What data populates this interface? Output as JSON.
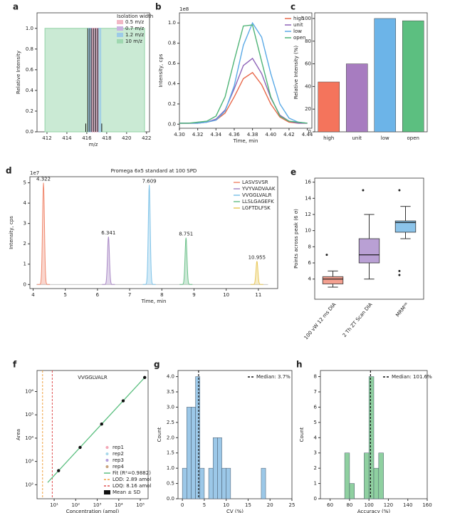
{
  "chart_data": [
    {
      "panel": "a",
      "type": "window",
      "x_label": "m/z",
      "y_label": "Relative Intensity",
      "xlim": [
        411,
        422.3
      ],
      "ylim": [
        0,
        1.15
      ],
      "xticks": [
        412,
        414,
        416,
        418,
        420,
        422
      ],
      "yticks": [
        {
          "value": 0,
          "label": "0.0"
        },
        0.2,
        0.4,
        0.6,
        0.8,
        {
          "value": 1,
          "label": "1.0"
        }
      ],
      "legend_title": "Isolation width",
      "series": [
        {
          "name": "0.5 m/z",
          "color": "#f2b8c6",
          "xrange": [
            416.55,
            417.05
          ],
          "values": [
            1
          ]
        },
        {
          "name": "0.7 m/z",
          "color": "#c9b3e0",
          "xrange": [
            416.45,
            417.15
          ],
          "values": [
            1
          ]
        },
        {
          "name": "1.2 m/z",
          "color": "#9ccbe8",
          "xrange": [
            416.2,
            417.4
          ],
          "values": [
            1
          ]
        },
        {
          "name": "10 m/z",
          "color": "#9fd8b0",
          "xrange": [
            411.8,
            421.8
          ],
          "values": [
            1
          ]
        }
      ],
      "peaks": {
        "x": [
          415.9,
          416.1,
          416.3,
          416.5,
          416.7,
          416.9,
          417.1,
          417.5
        ],
        "values": [
          0.08,
          1,
          1,
          1,
          1,
          1,
          1,
          0.08
        ]
      }
    },
    {
      "panel": "b",
      "type": "line",
      "x_label": "Time, min",
      "y_label": "Intensity, cps",
      "y_offset_label": "1e8",
      "xlim": [
        4.3,
        4.445
      ],
      "ylim": [
        -0.04,
        1.1
      ],
      "xticks": [
        {
          "value": 4.3,
          "label": "4.30"
        },
        4.32,
        4.34,
        4.36,
        4.38,
        {
          "value": 4.4,
          "label": "4.40"
        },
        4.42,
        4.44
      ],
      "yticks": [
        {
          "value": 0,
          "label": "0.0"
        },
        0.2,
        0.4,
        0.6,
        0.8,
        {
          "value": 1,
          "label": "1.0"
        }
      ],
      "x": [
        4.3,
        4.31,
        4.32,
        4.33,
        4.34,
        4.35,
        4.36,
        4.37,
        4.38,
        4.39,
        4.4,
        4.41,
        4.42,
        4.43,
        4.44
      ],
      "series": [
        {
          "name": "high",
          "color": "#e8684a",
          "values": [
            0.01,
            0.01,
            0.01,
            0.02,
            0.04,
            0.11,
            0.27,
            0.45,
            0.51,
            0.39,
            0.2,
            0.07,
            0.02,
            0.01,
            0.01
          ]
        },
        {
          "name": "unit",
          "color": "#8e63b8",
          "values": [
            0.01,
            0.01,
            0.01,
            0.02,
            0.05,
            0.14,
            0.35,
            0.58,
            0.65,
            0.5,
            0.26,
            0.09,
            0.03,
            0.01,
            0.01
          ]
        },
        {
          "name": "low",
          "color": "#5aa9e6",
          "values": [
            0.01,
            0.01,
            0.01,
            0.02,
            0.04,
            0.13,
            0.38,
            0.78,
            1.0,
            0.86,
            0.5,
            0.2,
            0.06,
            0.02,
            0.01
          ]
        },
        {
          "name": "open",
          "color": "#4fb477",
          "values": [
            0.01,
            0.01,
            0.02,
            0.03,
            0.08,
            0.27,
            0.63,
            0.97,
            0.98,
            0.62,
            0.27,
            0.08,
            0.03,
            0.02,
            0.01
          ]
        }
      ]
    },
    {
      "panel": "c",
      "type": "bar",
      "y_label": "Relative Intensity (%)",
      "categories": [
        "high",
        "unit",
        "low",
        "open"
      ],
      "values": [
        44,
        60,
        100,
        98
      ],
      "colors": [
        "#f4745c",
        "#a77cc0",
        "#6cb4e8",
        "#5cbf80"
      ],
      "ylim": [
        0,
        105
      ],
      "yticks": [
        0,
        20,
        40,
        60,
        80,
        100
      ]
    },
    {
      "panel": "d",
      "type": "chromatogram",
      "title": "Promega 6x5 standard at 100 SPD",
      "x_label": "Time, min",
      "y_label": "Intensity, cps",
      "y_offset_label": "1e7",
      "xlim": [
        3.9,
        11.6
      ],
      "ylim": [
        -0.2,
        5.3
      ],
      "xticks": [
        4,
        5,
        6,
        7,
        8,
        9,
        10,
        11
      ],
      "yticks": [
        0,
        1,
        2,
        3,
        4,
        5
      ],
      "series": [
        {
          "name": "LASVSVSR",
          "color": "#f08a70",
          "x": [
            4.322
          ],
          "values": [
            5.0
          ]
        },
        {
          "name": "YVYVADVAAK",
          "color": "#a989c5",
          "x": [
            6.341
          ],
          "values": [
            2.35
          ]
        },
        {
          "name": "VVGGLVALR",
          "color": "#7fc3e8",
          "x": [
            7.609
          ],
          "values": [
            4.9
          ]
        },
        {
          "name": "LLSLGAGEFK",
          "color": "#6cc08a",
          "x": [
            8.751
          ],
          "values": [
            2.3
          ]
        },
        {
          "name": "LGFTDLFSK",
          "color": "#e8c85a",
          "x": [
            10.955
          ],
          "values": [
            1.15
          ]
        }
      ]
    },
    {
      "panel": "e",
      "type": "box",
      "y_label": "Points across peak (6 σ)",
      "categories": [
        "100 vW 12 ms DIA",
        "2 Th ZT Scan DIA",
        "MRMᴴᴿ"
      ],
      "colors": [
        "#f4a090",
        "#b9a0d4",
        "#8cc4ea"
      ],
      "ylim": [
        1.5,
        16.5
      ],
      "yticks": [
        4,
        6,
        8,
        10,
        12,
        14,
        16
      ],
      "boxes": [
        {
          "whislo": 3,
          "q1": 3.4,
          "med": 4,
          "q3": 4.3,
          "whishi": 5,
          "fliers": [
            7
          ]
        },
        {
          "whislo": 4,
          "q1": 6,
          "med": 7,
          "q3": 9,
          "whishi": 12,
          "fliers": [
            15
          ]
        },
        {
          "whislo": 9,
          "q1": 9.8,
          "med": 11,
          "q3": 11.2,
          "whishi": 13,
          "fliers": [
            15,
            5,
            4.5
          ]
        }
      ]
    },
    {
      "panel": "f",
      "type": "scatter",
      "title": "VVGGLVALR",
      "x_label": "Concentration (amol)",
      "y_label": "Area",
      "xlog": true,
      "ylog": true,
      "xlim": [
        1.6,
        230000
      ],
      "ylim": [
        25,
        8000000
      ],
      "xticks": [
        {
          "value": 10,
          "label": "10¹"
        },
        {
          "value": 100,
          "label": "10²"
        },
        {
          "value": 1000,
          "label": "10³"
        },
        {
          "value": 10000,
          "label": "10⁴"
        },
        {
          "value": 100000,
          "label": "10⁵"
        }
      ],
      "yticks": [
        {
          "value": 100,
          "label": "10²"
        },
        {
          "value": 1000,
          "label": "10³"
        },
        {
          "value": 10000,
          "label": "10⁴"
        },
        {
          "value": 100000,
          "label": "10⁵"
        },
        {
          "value": 1000000,
          "label": "10⁶"
        }
      ],
      "reps": [
        {
          "name": "rep1",
          "color": "#f4a6b6"
        },
        {
          "name": "rep2",
          "color": "#a8d8ea"
        },
        {
          "name": "rep3",
          "color": "#b39ddb"
        },
        {
          "name": "rep4",
          "color": "#c7a27c"
        }
      ],
      "fit": {
        "name": "Fit (R²=0.9882)",
        "color": "#5cbf80",
        "x": [
          5,
          160000
        ],
        "values": [
          125,
          4000000
        ]
      },
      "vlines": [
        {
          "name": "LOD: 2.89 amol",
          "color": "#f0a040",
          "x": 2.89
        },
        {
          "name": "LOQ: 8.16 amol",
          "color": "#e05050",
          "x": 8.16
        }
      ],
      "series": [
        {
          "name": "Mean ± SD",
          "color": "#111111",
          "x": [
            16,
            160,
            1600,
            16000,
            160000
          ],
          "values": [
            400,
            4000,
            40000,
            400000,
            4000000
          ]
        }
      ]
    },
    {
      "panel": "g",
      "type": "histogram",
      "x_label": "CV (%)",
      "y_label": "Count",
      "color": "#9cc8e8",
      "xlim": [
        -1,
        25
      ],
      "ylim": [
        0,
        4.2
      ],
      "xticks": [
        0,
        5,
        10,
        15,
        20,
        25
      ],
      "yticks": [
        {
          "value": 0,
          "label": "0.0"
        },
        0.5,
        {
          "value": 1,
          "label": "1.0"
        },
        1.5,
        {
          "value": 2,
          "label": "2.0"
        },
        2.5,
        {
          "value": 3,
          "label": "3.0"
        },
        3.5,
        {
          "value": 4,
          "label": "4.0"
        }
      ],
      "bins": [
        0,
        1,
        2,
        3,
        4,
        5,
        6,
        7,
        8,
        9,
        10,
        11,
        12,
        13,
        14,
        15,
        16,
        17,
        18,
        19
      ],
      "counts": [
        1,
        3,
        3,
        4,
        1,
        0,
        1,
        2,
        2,
        1,
        1,
        0,
        0,
        0,
        0,
        0,
        0,
        0,
        1
      ],
      "median": 3.7,
      "median_label": "Median: 3.7%"
    },
    {
      "panel": "h",
      "type": "histogram",
      "x_label": "Accuracy (%)",
      "y_label": "Count",
      "color": "#8fd0a0",
      "xlim": [
        50,
        160
      ],
      "ylim": [
        0,
        8.4
      ],
      "xticks": [
        60,
        80,
        100,
        120,
        140,
        160
      ],
      "yticks": [
        0,
        1,
        2,
        3,
        4,
        5,
        6,
        7,
        8
      ],
      "bins": [
        75,
        80,
        85,
        90,
        95,
        100,
        105,
        110,
        115
      ],
      "counts": [
        3,
        1,
        0,
        0,
        3,
        8,
        2,
        3
      ],
      "median": 101.6,
      "median_label": "Median: 101.6%"
    }
  ]
}
